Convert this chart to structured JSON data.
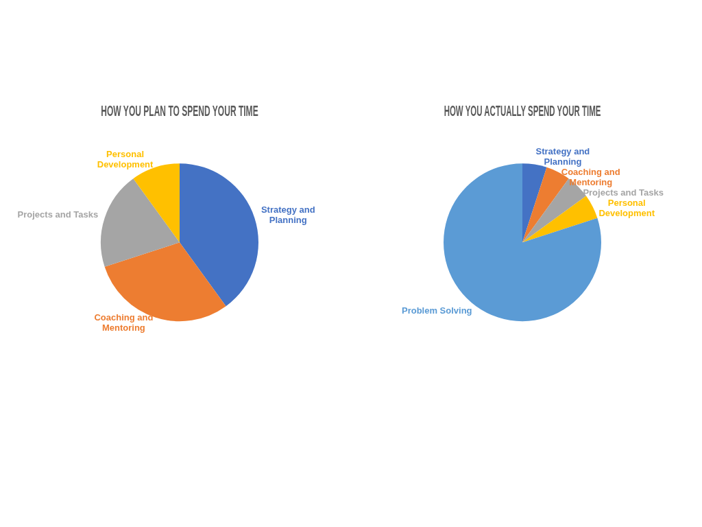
{
  "chart_data": [
    {
      "type": "pie",
      "title": "HOW YOU PLAN TO SPEND YOUR TIME",
      "categories": [
        "Strategy and Planning",
        "Coaching and Mentoring",
        "Projects and Tasks",
        "Personal Development"
      ],
      "values": [
        40,
        30,
        20,
        10
      ],
      "colors": [
        "#4472c4",
        "#ed7d31",
        "#a5a5a5",
        "#ffc000"
      ]
    },
    {
      "type": "pie",
      "title": "HOW YOU ACTUALLY SPEND YOUR TIME",
      "categories": [
        "Strategy and Planning",
        "Coaching and Mentoring",
        "Projects and Tasks",
        "Personal Development",
        "Problem Solving"
      ],
      "values": [
        5,
        5,
        5,
        5,
        80
      ],
      "colors": [
        "#4472c4",
        "#ed7d31",
        "#a5a5a5",
        "#ffc000",
        "#5b9bd5"
      ]
    }
  ]
}
